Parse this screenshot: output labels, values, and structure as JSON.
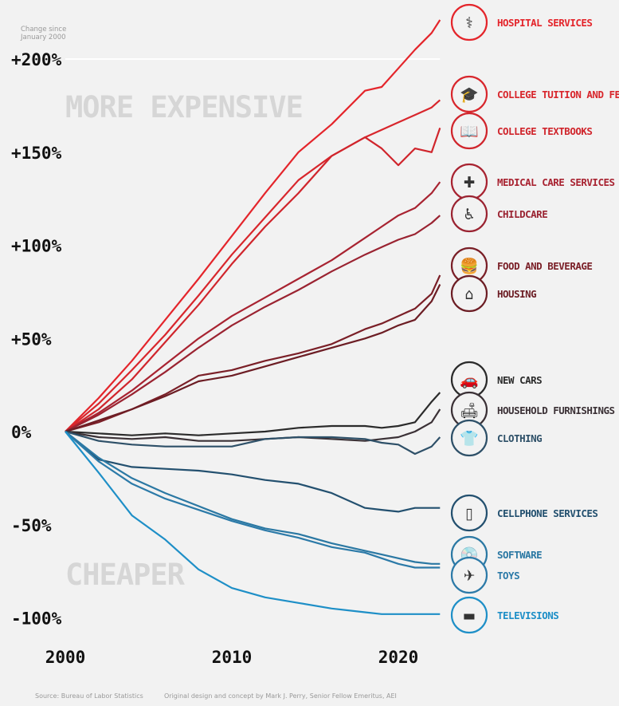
{
  "chart_data": {
    "type": "line",
    "title": "",
    "ylabel": "Change since January 2000",
    "xlim": [
      2000,
      2022.5
    ],
    "ylim": [
      -110,
      225
    ],
    "y_ticks": [
      {
        "v": 200,
        "label": "+200%"
      },
      {
        "v": 150,
        "label": "+150%"
      },
      {
        "v": 100,
        "label": "+100%"
      },
      {
        "v": 50,
        "label": "+50%"
      },
      {
        "v": 0,
        "label": "0%"
      },
      {
        "v": -50,
        "label": "-50%"
      },
      {
        "v": -100,
        "label": "-100%"
      }
    ],
    "x_ticks": [
      {
        "v": 2000,
        "label": "2000"
      },
      {
        "v": 2010,
        "label": "2010"
      },
      {
        "v": 2020,
        "label": "2020"
      }
    ],
    "annotations": {
      "more_expensive": "MORE EXPENSIVE",
      "cheaper": "CHEAPER"
    },
    "x": [
      2000,
      2002,
      2004,
      2006,
      2008,
      2010,
      2012,
      2014,
      2016,
      2018,
      2019,
      2020,
      2021,
      2022,
      2022.5
    ],
    "series": [
      {
        "name": "HOSPITAL SERVICES",
        "color": "#e4252b",
        "icon": "iv-drip-icon",
        "values": [
          0,
          18,
          38,
          60,
          82,
          105,
          128,
          150,
          165,
          183,
          185,
          195,
          205,
          214,
          221
        ]
      },
      {
        "name": "COLLEGE TUITION AND FEES",
        "color": "#d8262c",
        "icon": "graduation-cap-icon",
        "values": [
          0,
          15,
          33,
          52,
          73,
          95,
          115,
          135,
          148,
          158,
          162,
          166,
          170,
          174,
          178
        ]
      },
      {
        "name": "COLLEGE TEXTBOOKS",
        "color": "#d0252c",
        "icon": "book-icon",
        "values": [
          0,
          12,
          28,
          48,
          68,
          90,
          110,
          128,
          148,
          158,
          152,
          143,
          152,
          150,
          163
        ]
      },
      {
        "name": "MEDICAL CARE SERVICES",
        "color": "#a82331",
        "icon": "medical-kit-icon",
        "values": [
          0,
          10,
          22,
          36,
          50,
          62,
          72,
          82,
          92,
          104,
          110,
          116,
          120,
          128,
          134
        ]
      },
      {
        "name": "CHILDCARE",
        "color": "#9a2331",
        "icon": "stroller-icon",
        "values": [
          0,
          9,
          20,
          32,
          45,
          57,
          67,
          76,
          86,
          95,
          99,
          103,
          106,
          112,
          116
        ]
      },
      {
        "name": "FOOD AND BEVERAGE",
        "color": "#7a1f27",
        "icon": "food-icon",
        "values": [
          0,
          5,
          12,
          20,
          30,
          33,
          38,
          42,
          47,
          55,
          58,
          62,
          66,
          74,
          84
        ]
      },
      {
        "name": "HOUSING",
        "color": "#6c1d24",
        "icon": "house-icon",
        "values": [
          0,
          6,
          12,
          19,
          27,
          30,
          35,
          40,
          45,
          50,
          53,
          57,
          60,
          70,
          79
        ]
      },
      {
        "name": "NEW CARS",
        "color": "#2b2b2b",
        "icon": "car-icon",
        "values": [
          0,
          -1,
          -2,
          -1,
          -2,
          -1,
          0,
          2,
          3,
          3,
          2,
          3,
          5,
          16,
          21
        ]
      },
      {
        "name": "HOUSEHOLD FURNISHINGS",
        "color": "#3b3136",
        "icon": "sofa-icon",
        "values": [
          0,
          -3,
          -4,
          -3,
          -5,
          -5,
          -4,
          -3,
          -4,
          -5,
          -4,
          -3,
          0,
          5,
          12
        ]
      },
      {
        "name": "CLOTHING",
        "color": "#2e5068",
        "icon": "shirt-icon",
        "values": [
          0,
          -5,
          -7,
          -8,
          -8,
          -8,
          -4,
          -3,
          -3,
          -4,
          -6,
          -7,
          -12,
          -8,
          -3
        ]
      },
      {
        "name": "CELLPHONE SERVICES",
        "color": "#23506f",
        "icon": "cellphone-icon",
        "values": [
          0,
          -15,
          -19,
          -20,
          -21,
          -23,
          -26,
          -28,
          -33,
          -41,
          -42,
          -43,
          -41,
          -41,
          -41
        ]
      },
      {
        "name": "SOFTWARE",
        "color": "#2b78a3",
        "icon": "software-icon",
        "values": [
          0,
          -14,
          -25,
          -33,
          -40,
          -47,
          -52,
          -55,
          -60,
          -64,
          -66,
          -68,
          -70,
          -71,
          -71
        ]
      },
      {
        "name": "TOYS",
        "color": "#2c7aa8",
        "icon": "toys-icon",
        "values": [
          0,
          -16,
          -28,
          -36,
          -42,
          -48,
          -53,
          -57,
          -62,
          -65,
          -68,
          -71,
          -73,
          -73,
          -73
        ]
      },
      {
        "name": "TELEVISIONS",
        "color": "#1e8fc7",
        "icon": "television-icon",
        "values": [
          0,
          -22,
          -45,
          -58,
          -74,
          -84,
          -89,
          -92,
          -95,
          -97,
          -98,
          -98,
          -98,
          -98,
          -98
        ]
      }
    ]
  },
  "note": {
    "line1": "Change since",
    "line2": "January 2000"
  },
  "footer": {
    "source": "Source: Bureau of Labor Statistics",
    "credit": "Original design and concept by Mark J. Perry, Senior Fellow Emeritus, AEI"
  }
}
